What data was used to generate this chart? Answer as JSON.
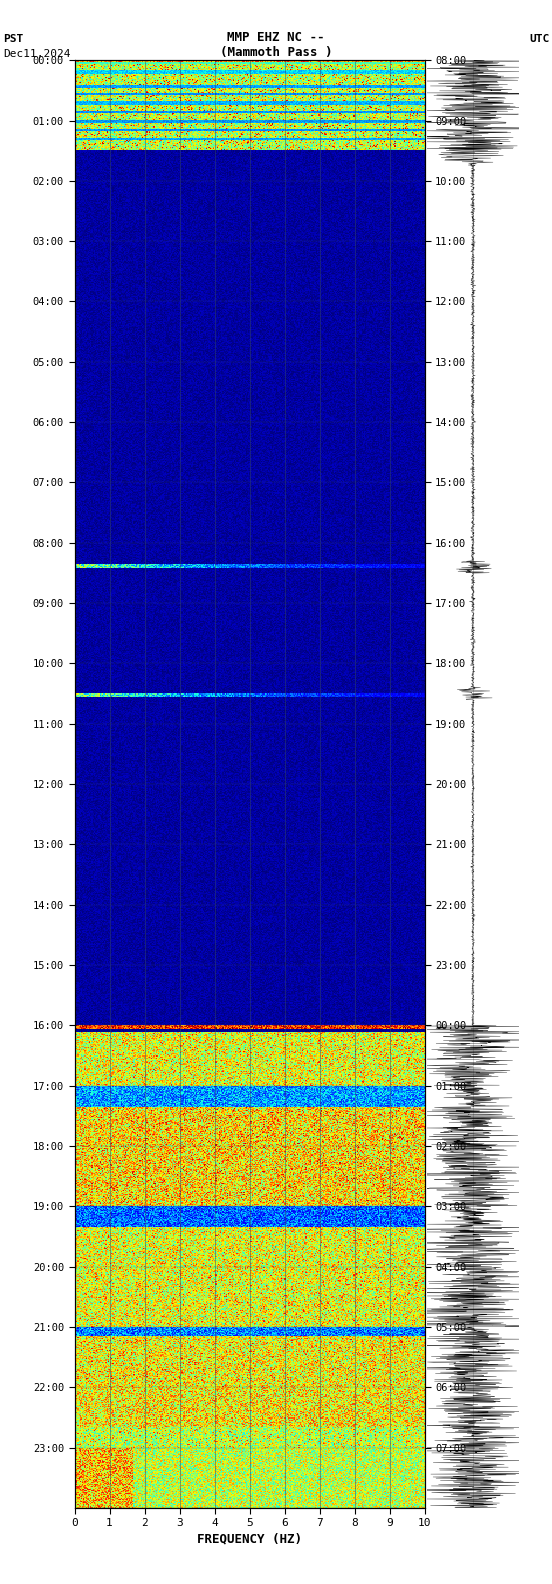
{
  "title_line1": "MMP EHZ NC --",
  "title_line2": "(Mammoth Pass )",
  "left_label": "PST",
  "right_label": "UTC",
  "date_label": "Dec11,2024",
  "xlabel": "FREQUENCY (HZ)",
  "freq_min": 0,
  "freq_max": 10,
  "freq_ticks": [
    0,
    1,
    2,
    3,
    4,
    5,
    6,
    7,
    8,
    9,
    10
  ],
  "left_yticks": [
    "00:00",
    "01:00",
    "02:00",
    "03:00",
    "04:00",
    "05:00",
    "06:00",
    "07:00",
    "08:00",
    "09:00",
    "10:00",
    "11:00",
    "12:00",
    "13:00",
    "14:00",
    "15:00",
    "16:00",
    "17:00",
    "18:00",
    "19:00",
    "20:00",
    "21:00",
    "22:00",
    "23:00"
  ],
  "right_yticks": [
    "08:00",
    "09:00",
    "10:00",
    "11:00",
    "12:00",
    "13:00",
    "14:00",
    "15:00",
    "16:00",
    "17:00",
    "18:00",
    "19:00",
    "20:00",
    "21:00",
    "22:00",
    "23:00",
    "00:00",
    "01:00",
    "02:00",
    "03:00",
    "04:00",
    "05:00",
    "06:00",
    "07:00"
  ],
  "background_color": "#000099",
  "grid_color": "#334466"
}
